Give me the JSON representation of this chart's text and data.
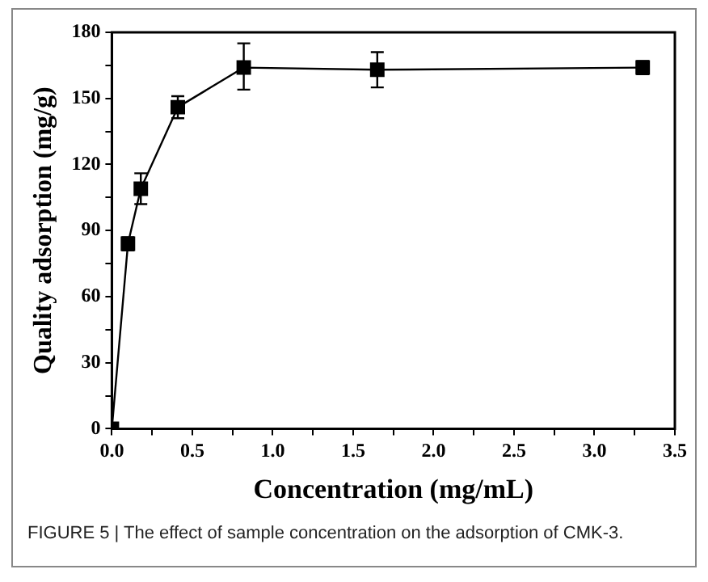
{
  "chart_data": {
    "type": "line",
    "xlabel": "Concentration (mg/mL)",
    "ylabel": "Quality adsorption (mg/g)",
    "annotations": [
      "FIGURE 5 | The effect of sample concentration on the adsorption of CMK-3."
    ],
    "x": [
      0,
      0.1,
      0.18,
      0.41,
      0.82,
      1.65,
      3.3
    ],
    "series": [
      {
        "color": "#000000",
        "values": [
          0,
          84,
          109,
          146,
          164,
          163,
          164
        ],
        "errors": [
          null,
          3,
          7,
          5,
          [
            154,
            175
          ],
          8,
          3
        ]
      }
    ],
    "xlim": [
      0,
      3.5
    ],
    "xticks": [
      {
        "value": 0,
        "label": "0.0"
      },
      {
        "value": 0.25,
        "label": null
      },
      {
        "value": 0.5,
        "label": "0.5"
      },
      {
        "value": 0.75,
        "label": null
      },
      {
        "value": 1,
        "label": "1.0"
      },
      {
        "value": 1.25,
        "label": null
      },
      {
        "value": 1.5,
        "label": "1.5"
      },
      {
        "value": 1.75,
        "label": null
      },
      {
        "value": 2,
        "label": "2.0"
      },
      {
        "value": 2.25,
        "label": null
      },
      {
        "value": 2.5,
        "label": "2.5"
      },
      {
        "value": 2.75,
        "label": null
      },
      {
        "value": 3,
        "label": "3.0"
      },
      {
        "value": 3.25,
        "label": null
      },
      {
        "value": 3.5,
        "label": "3.5"
      }
    ],
    "ylim": [
      0,
      180
    ],
    "yticks": [
      0,
      {
        "value": 15,
        "label": null
      },
      30,
      {
        "value": 45,
        "label": null
      },
      60,
      {
        "value": 75,
        "label": null
      },
      90,
      {
        "value": 105,
        "label": null
      },
      120,
      {
        "value": 135,
        "label": null
      },
      150,
      {
        "value": 165,
        "label": null
      },
      180
    ],
    "grid": false,
    "legend": false,
    "marker": "square",
    "line_style": "solid"
  }
}
